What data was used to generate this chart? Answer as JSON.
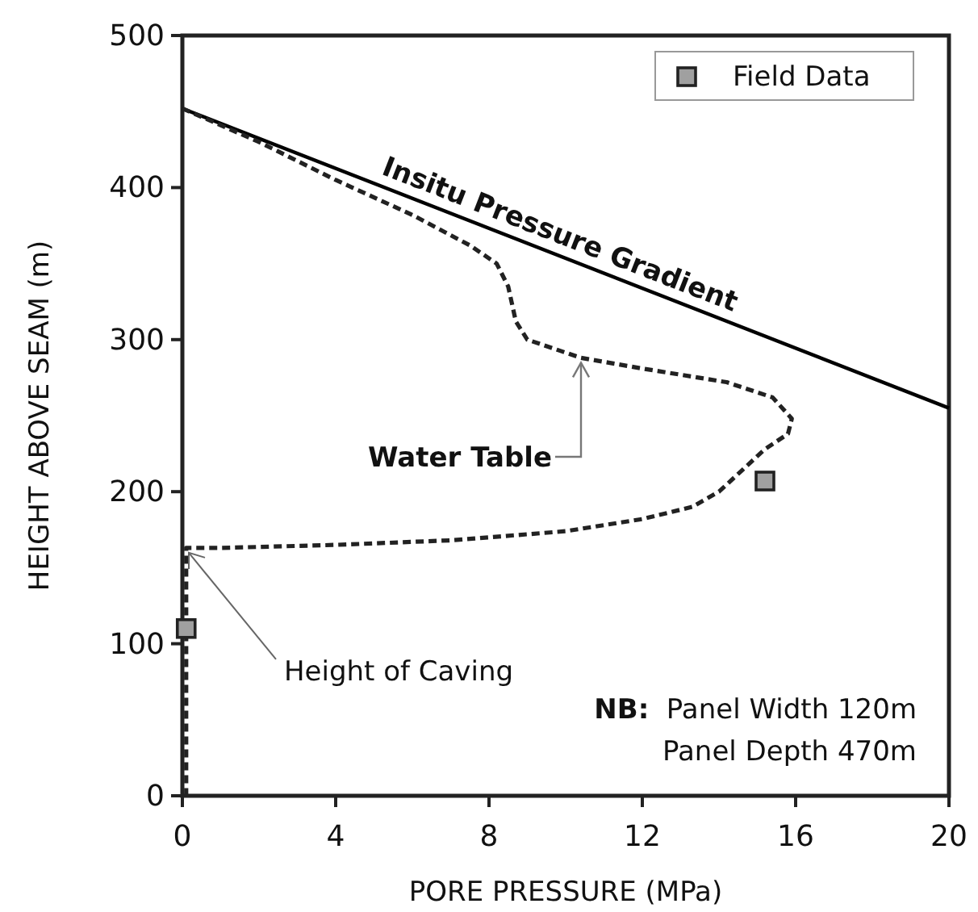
{
  "chart_data": {
    "type": "line",
    "xlabel": "PORE PRESSURE (MPa)",
    "ylabel": "HEIGHT ABOVE SEAM (m)",
    "xlim": [
      0,
      20
    ],
    "ylim": [
      0,
      500
    ],
    "xticks": [
      0,
      4,
      8,
      12,
      16,
      20
    ],
    "yticks": [
      0,
      100,
      200,
      300,
      400,
      500
    ],
    "grid": false,
    "legend": "top right",
    "series": [
      {
        "name": "Insitu Pressure Gradient",
        "line_style": "solid",
        "color": "#000000",
        "x": [
          0,
          20
        ],
        "values": [
          452,
          255
        ]
      },
      {
        "name": "Water Table",
        "line_style": "dashed",
        "color": "#222222",
        "x": [
          0,
          2,
          4,
          6,
          7.5,
          8.2,
          8.5,
          8.7,
          9,
          10.4,
          12,
          14.2,
          15.4,
          15.9,
          15.8,
          15.2,
          14.6,
          14,
          13.3,
          12,
          10,
          7,
          4,
          1,
          0.1,
          0.1
        ],
        "values": [
          452,
          430,
          405,
          382,
          362,
          350,
          335,
          312,
          300,
          288,
          281,
          272,
          262,
          248,
          238,
          228,
          214,
          200,
          190,
          182,
          174,
          168,
          165,
          163,
          163,
          0
        ]
      },
      {
        "name": "Field Data",
        "type": "scatter",
        "marker": "square",
        "color": "#a0a0a0",
        "x": [
          0.1,
          15.2
        ],
        "values": [
          110,
          207
        ]
      }
    ],
    "annotations": [
      {
        "text": "Height of Caving",
        "x": 0,
        "y": 163
      },
      "NB:  Panel Width 120m",
      "Panel Depth 470m"
    ]
  }
}
